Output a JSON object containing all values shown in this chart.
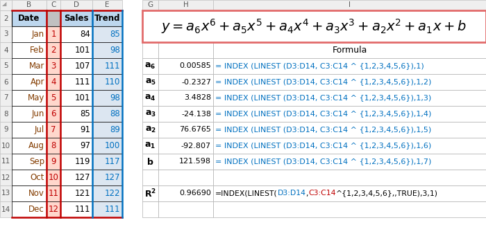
{
  "left_table": {
    "header": [
      "Date",
      "",
      "Sales",
      "Trend"
    ],
    "rows": [
      [
        "Jan",
        "1",
        "84",
        "85"
      ],
      [
        "Feb",
        "2",
        "101",
        "98"
      ],
      [
        "Mar",
        "3",
        "107",
        "111"
      ],
      [
        "Apr",
        "4",
        "111",
        "110"
      ],
      [
        "May",
        "5",
        "101",
        "98"
      ],
      [
        "Jun",
        "6",
        "85",
        "88"
      ],
      [
        "Jul",
        "7",
        "91",
        "89"
      ],
      [
        "Aug",
        "8",
        "97",
        "100"
      ],
      [
        "Sep",
        "9",
        "119",
        "117"
      ],
      [
        "Oct",
        "10",
        "127",
        "127"
      ],
      [
        "Nov",
        "11",
        "121",
        "122"
      ],
      [
        "Dec",
        "12",
        "111",
        "111"
      ]
    ]
  },
  "coeff_rows": [
    {
      "sub": "6",
      "value": "0.00585",
      "formula": "= INDEX (LINEST (D3:D14, C3:C14 ^ {1,2,3,4,5,6}),1)"
    },
    {
      "sub": "5",
      "value": "-0.2327",
      "formula": "= INDEX (LINEST (D3:D14, C3:C14 ^ {1,2,3,4,5,6}),1,2)"
    },
    {
      "sub": "4",
      "value": "3.4828",
      "formula": "= INDEX (LINEST (D3:D14, C3:C14 ^ {1,2,3,4,5,6}),1,3)"
    },
    {
      "sub": "3",
      "value": "-24.138",
      "formula": "= INDEX (LINEST (D3:D14, C3:C14 ^ {1,2,3,4,5,6}),1,4)"
    },
    {
      "sub": "2",
      "value": "76.6765",
      "formula": "= INDEX (LINEST (D3:D14, C3:C14 ^ {1,2,3,4,5,6}),1,5)"
    },
    {
      "sub": "1",
      "value": "-92.807",
      "formula": "= INDEX (LINEST (D3:D14, C3:C14 ^ {1,2,3,4,5,6}),1,6)"
    },
    {
      "sub": "b",
      "value": "121.598",
      "formula": "= INDEX (LINEST (D3:D14, C3:C14 ^ {1,2,3,4,5,6}),1,7)"
    }
  ],
  "r2_value": "0.96690",
  "r2_formula_plain": "=INDEX(LINEST(",
  "r2_part_d": "D3:D14",
  "r2_part_comma": ",",
  "r2_part_c": "C3:C14",
  "r2_part_rest": "^{1,2,3,4,5,6},,TRUE),3,1)",
  "col_header_color": "#595959",
  "col_header_bg": "#efefef",
  "row_header_bg": "#efefef",
  "date_color": "#833c00",
  "num_red_color": "#c00000",
  "num_red_bg": "#ffd7cc",
  "sales_color": "#000000",
  "trend_color": "#0070c0",
  "trend_bg": "#dce6f1",
  "header_bg": "#bdd7ee",
  "formula_text_color": "#000000",
  "formula_box_border": "#e26b6b",
  "coeff_label_color": "#000000",
  "coeff_value_color": "#000000",
  "coeff_formula_color": "#0070c0",
  "r2_color_d": "#0070c0",
  "r2_color_c": "#c00000",
  "grid_color": "#b0b0b0",
  "black": "#000000",
  "white": "#ffffff"
}
